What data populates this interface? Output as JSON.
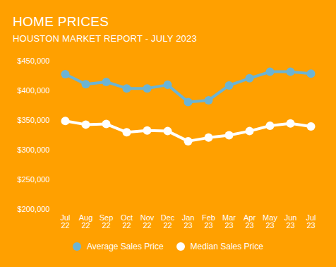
{
  "chart_data": {
    "type": "line",
    "title": "HOME PRICES",
    "subtitle": "HOUSTON MARKET REPORT - JULY 2023",
    "categories": [
      "Jul 22",
      "Aug 22",
      "Sep 22",
      "Oct 22",
      "Nov 22",
      "Dec 22",
      "Jan 23",
      "Feb 23",
      "Mar 23",
      "Apr 23",
      "May 23",
      "Jun 23",
      "Jul 23"
    ],
    "series": [
      {
        "name": "Average Sales Price",
        "color": "#6CB4D4",
        "values": [
          428000,
          411000,
          415000,
          404000,
          404000,
          410000,
          381000,
          384000,
          409000,
          421000,
          432000,
          432000,
          429000
        ]
      },
      {
        "name": "Median Sales Price",
        "color": "#FFFFFF",
        "values": [
          349000,
          343000,
          344000,
          330000,
          333000,
          332000,
          315000,
          321000,
          325000,
          332000,
          341000,
          345000,
          340000
        ]
      }
    ],
    "ylim": [
      200000,
      450000
    ],
    "yticks": [
      {
        "value": 200000,
        "label": "$200,000"
      },
      {
        "value": 250000,
        "label": "$250,000"
      },
      {
        "value": 300000,
        "label": "$300,000"
      },
      {
        "value": 350000,
        "label": "$350,000"
      },
      {
        "value": 400000,
        "label": "$400,000"
      },
      {
        "value": 450000,
        "label": "$450,000"
      }
    ],
    "grid": false,
    "legend": "bottom",
    "marker": "circle"
  }
}
